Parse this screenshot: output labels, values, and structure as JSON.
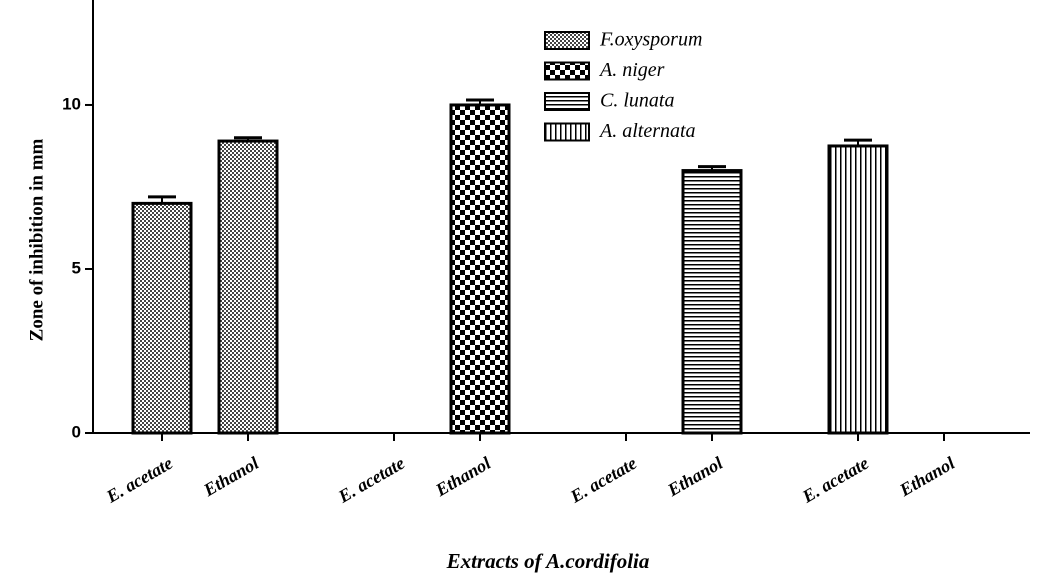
{
  "chart_data": {
    "type": "bar",
    "xlabel": "Extracts of A.cordifolia",
    "ylabel": "Zone of inhibition in mm",
    "categories": [
      "E. acetate",
      "Ethanol",
      "E. acetate",
      "Ethanol",
      "E. acetate",
      "Ethanol",
      "E. acetate",
      "Ethanol"
    ],
    "series": [
      {
        "name": "F.oxysporum",
        "color": "#555555",
        "pattern": "fine-check",
        "values": [
          7.0,
          8.9,
          null,
          null,
          null,
          null,
          null,
          null
        ],
        "errors": [
          0.2,
          0.1,
          null,
          null,
          null,
          null,
          null,
          null
        ]
      },
      {
        "name": "A. niger",
        "color": "#000000",
        "pattern": "check",
        "values": [
          null,
          null,
          0,
          10.0,
          null,
          null,
          null,
          null
        ],
        "errors": [
          null,
          null,
          0,
          0.15,
          null,
          null,
          null,
          null
        ]
      },
      {
        "name": "C. lunata",
        "color": "#000000",
        "pattern": "horizontal",
        "values": [
          null,
          null,
          null,
          null,
          0,
          8.0,
          null,
          null
        ],
        "errors": [
          null,
          null,
          null,
          null,
          0,
          0.12,
          null,
          null
        ]
      },
      {
        "name": "A. alternata",
        "color": "#000000",
        "pattern": "vertical",
        "values": [
          null,
          null,
          null,
          null,
          null,
          null,
          8.75,
          0
        ],
        "errors": [
          null,
          null,
          null,
          null,
          null,
          null,
          0.18,
          0
        ]
      }
    ],
    "ylim": [
      0,
      13.2
    ],
    "yticks": [
      0,
      5,
      10
    ],
    "grid": false
  }
}
